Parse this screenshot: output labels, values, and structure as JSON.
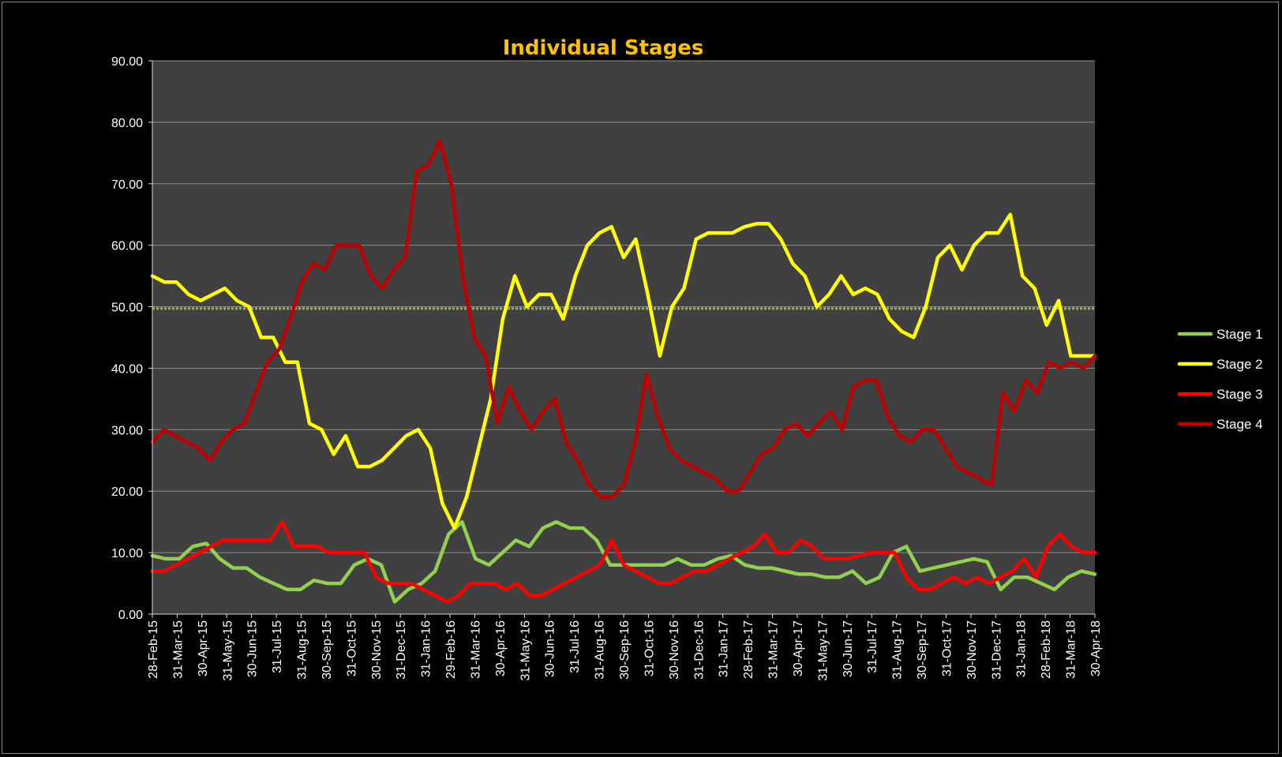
{
  "chart_data": {
    "type": "line",
    "title": "Individual Stages",
    "ylim": [
      0,
      90
    ],
    "y_ticks": [
      "0.00",
      "10.00",
      "20.00",
      "30.00",
      "40.00",
      "50.00",
      "60.00",
      "70.00",
      "80.00",
      "90.00"
    ],
    "x_tick_labels": [
      "28-Feb-15",
      "31-Mar-15",
      "30-Apr-15",
      "31-May-15",
      "30-Jun-15",
      "31-Jul-15",
      "31-Aug-15",
      "30-Sep-15",
      "31-Oct-15",
      "30-Nov-15",
      "31-Dec-15",
      "31-Jan-16",
      "29-Feb-16",
      "31-Mar-16",
      "30-Apr-16",
      "31-May-16",
      "30-Jun-16",
      "31-Jul-16",
      "31-Aug-16",
      "30-Sep-16",
      "31-Oct-16",
      "30-Nov-16",
      "31-Dec-16",
      "31-Jan-17",
      "28-Feb-17",
      "31-Mar-17",
      "30-Apr-17",
      "31-May-17",
      "30-Jun-17",
      "31-Jul-17",
      "31-Aug-17",
      "30-Sep-17",
      "31-Oct-17",
      "30-Nov-17",
      "31-Dec-17",
      "31-Jan-18",
      "28-Feb-18",
      "31-Mar-18",
      "30-Apr-18"
    ],
    "grid": true,
    "legend_position": "right",
    "reference_line": {
      "y": 49.7,
      "color": "#9bbb59"
    },
    "colors": {
      "background": "#000000",
      "plot_area": "#404040",
      "title": "#ffc000"
    },
    "series": [
      {
        "name": "Stage 1",
        "color": "#92d050",
        "values": [
          9.5,
          9,
          9,
          11,
          11.5,
          9,
          7.5,
          7.5,
          6,
          5,
          4,
          4,
          5.5,
          5,
          5,
          8,
          9,
          8,
          2,
          4,
          5,
          7,
          13,
          15,
          9,
          8,
          10,
          12,
          11,
          14,
          15,
          14,
          14,
          12,
          8,
          8,
          8,
          8,
          8,
          9,
          8,
          8,
          9,
          9.5,
          8,
          7.5,
          7.5,
          7,
          6.5,
          6.5,
          6,
          6,
          7,
          5,
          6,
          10,
          11,
          7,
          7.5,
          8,
          8.5,
          9,
          8.5,
          4,
          6,
          6,
          5,
          4,
          6,
          7,
          6.5
        ]
      },
      {
        "name": "Stage 2",
        "color": "#ffff00",
        "values": [
          55,
          54,
          54,
          52,
          51,
          52,
          53,
          51,
          50,
          45,
          45,
          41,
          41,
          31,
          30,
          26,
          29,
          24,
          24,
          25,
          27,
          29,
          30,
          27,
          18,
          14,
          19,
          27,
          35,
          48,
          55,
          50,
          52,
          52,
          48,
          55,
          60,
          62,
          63,
          58,
          61,
          52,
          42,
          50,
          53,
          61,
          62,
          62,
          62,
          63,
          63.5,
          63.5,
          61,
          57,
          55,
          50,
          52,
          55,
          52,
          53,
          52,
          48,
          46,
          45,
          50,
          58,
          60,
          56,
          60,
          62,
          62,
          65,
          55,
          53,
          47,
          51,
          42,
          42,
          42
        ]
      },
      {
        "name": "Stage 3",
        "color": "#ff0000",
        "values": [
          7,
          7,
          8,
          9,
          10,
          11,
          12,
          12,
          12,
          12,
          12,
          15,
          11,
          11,
          11,
          10,
          10,
          10,
          10,
          6,
          5,
          5,
          5,
          4,
          3,
          2,
          3,
          5,
          5,
          5,
          4,
          5,
          3,
          3,
          4,
          5,
          6,
          7,
          8,
          12,
          8,
          7,
          6,
          5,
          5,
          6,
          7,
          7,
          8,
          9,
          10,
          11,
          13,
          10,
          10,
          12,
          11,
          9,
          9,
          9,
          9.5,
          10,
          10,
          10,
          6,
          4,
          4,
          5,
          6,
          5,
          6,
          5,
          6,
          7,
          9,
          6,
          11,
          13,
          11,
          10,
          10
        ]
      },
      {
        "name": "Stage 4",
        "color": "#c00000",
        "values": [
          28,
          30,
          29,
          28,
          27,
          25,
          28,
          30,
          31,
          36,
          41,
          43,
          48,
          54,
          57,
          56,
          60,
          60,
          60,
          55,
          53,
          56,
          58,
          72,
          73,
          77,
          70,
          55,
          45,
          42,
          31,
          37,
          33,
          30,
          33,
          35,
          28,
          25,
          21,
          19,
          19,
          21,
          28,
          39,
          32,
          27,
          25,
          24,
          23,
          22,
          20,
          20,
          23,
          26,
          27,
          30,
          31,
          29,
          31,
          33,
          30,
          37,
          38,
          38,
          32,
          29,
          28,
          30,
          30,
          27,
          24,
          23,
          22,
          21,
          36,
          33,
          38,
          36,
          41,
          40,
          41,
          40,
          42
        ]
      }
    ]
  }
}
